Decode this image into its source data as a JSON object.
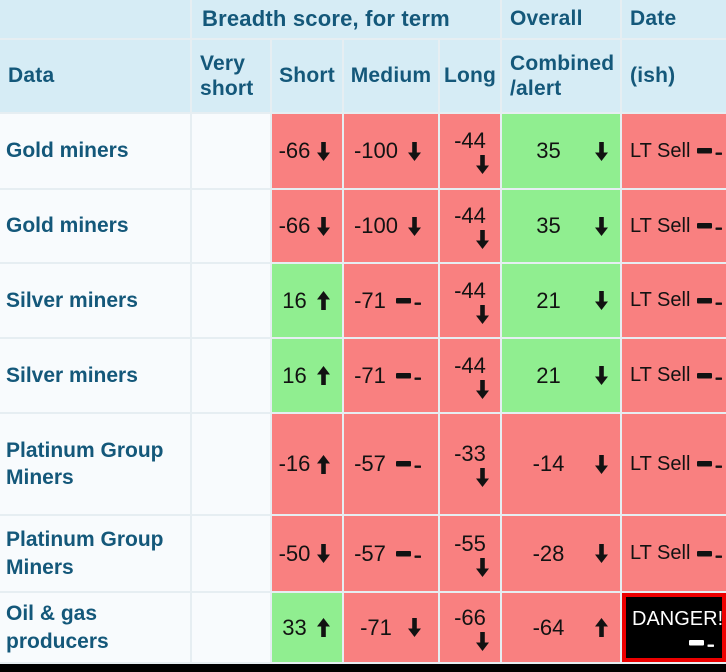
{
  "header": {
    "group_title": "Breadth score, for term",
    "overall_title": "Overall",
    "date_title": "Date",
    "col_data": "Data",
    "col_very_short": "Very short",
    "col_short": "Short",
    "col_medium": "Medium",
    "col_long": "Long",
    "col_combined": "Combined /alert",
    "col_date_ish": "(ish)"
  },
  "colors": {
    "header_bg": "#d6ecf5",
    "header_text": "#14587a",
    "negative_cell": "#f98080",
    "positive_cell": "#90ee90",
    "neutral_cell": "#f8fbfd",
    "danger_bg": "#000000",
    "danger_border": "#ec0000",
    "danger_text": "#ffffff"
  },
  "icons": {
    "up": "up-arrow-icon",
    "down": "down-arrow-icon",
    "flat": "flat-dash-icon"
  },
  "rows": [
    {
      "label": "Gold miners",
      "very_short": {
        "value": "",
        "trend": "none",
        "state": "none"
      },
      "short": {
        "value": "-66",
        "trend": "down",
        "state": "bad"
      },
      "medium": {
        "value": "-100",
        "trend": "down",
        "state": "bad"
      },
      "long": {
        "value": "-44",
        "trend": "down",
        "state": "bad"
      },
      "combined": {
        "value": "35",
        "trend": "down",
        "state": "good"
      },
      "date": {
        "value": "LT Sell",
        "trend": "flat",
        "state": "bad"
      }
    },
    {
      "label": "Gold miners",
      "very_short": {
        "value": "",
        "trend": "none",
        "state": "none"
      },
      "short": {
        "value": "-66",
        "trend": "down",
        "state": "bad"
      },
      "medium": {
        "value": "-100",
        "trend": "down",
        "state": "bad"
      },
      "long": {
        "value": "-44",
        "trend": "down",
        "state": "bad"
      },
      "combined": {
        "value": "35",
        "trend": "down",
        "state": "good"
      },
      "date": {
        "value": "LT Sell",
        "trend": "flat",
        "state": "bad"
      }
    },
    {
      "label": "Silver miners",
      "very_short": {
        "value": "",
        "trend": "none",
        "state": "none"
      },
      "short": {
        "value": "16",
        "trend": "up",
        "state": "good"
      },
      "medium": {
        "value": "-71",
        "trend": "flat",
        "state": "bad"
      },
      "long": {
        "value": "-44",
        "trend": "down",
        "state": "bad"
      },
      "combined": {
        "value": "21",
        "trend": "down",
        "state": "good"
      },
      "date": {
        "value": "LT Sell",
        "trend": "flat",
        "state": "bad"
      }
    },
    {
      "label": "Silver miners",
      "very_short": {
        "value": "",
        "trend": "none",
        "state": "none"
      },
      "short": {
        "value": "16",
        "trend": "up",
        "state": "good"
      },
      "medium": {
        "value": "-71",
        "trend": "flat",
        "state": "bad"
      },
      "long": {
        "value": "-44",
        "trend": "down",
        "state": "bad"
      },
      "combined": {
        "value": "21",
        "trend": "down",
        "state": "good"
      },
      "date": {
        "value": "LT Sell",
        "trend": "flat",
        "state": "bad"
      }
    },
    {
      "label": "Platinum Group Miners",
      "very_short": {
        "value": "",
        "trend": "none",
        "state": "none"
      },
      "short": {
        "value": "-16",
        "trend": "up",
        "state": "bad"
      },
      "medium": {
        "value": "-57",
        "trend": "flat",
        "state": "bad"
      },
      "long": {
        "value": "-33",
        "trend": "down",
        "state": "bad"
      },
      "combined": {
        "value": "-14",
        "trend": "down",
        "state": "bad"
      },
      "date": {
        "value": "LT Sell",
        "trend": "flat",
        "state": "bad"
      }
    },
    {
      "label": "Platinum Group Miners",
      "very_short": {
        "value": "",
        "trend": "none",
        "state": "none"
      },
      "short": {
        "value": "-50",
        "trend": "down",
        "state": "bad"
      },
      "medium": {
        "value": "-57",
        "trend": "flat",
        "state": "bad"
      },
      "long": {
        "value": "-55",
        "trend": "down",
        "state": "bad"
      },
      "combined": {
        "value": "-28",
        "trend": "down",
        "state": "bad"
      },
      "date": {
        "value": "LT Sell",
        "trend": "flat",
        "state": "bad"
      }
    },
    {
      "label": "Oil & gas producers",
      "very_short": {
        "value": "",
        "trend": "none",
        "state": "none"
      },
      "short": {
        "value": "33",
        "trend": "up",
        "state": "good"
      },
      "medium": {
        "value": "-71",
        "trend": "down",
        "state": "bad"
      },
      "long": {
        "value": "-66",
        "trend": "down",
        "state": "bad"
      },
      "combined": {
        "value": "-64",
        "trend": "up",
        "state": "bad"
      },
      "date": {
        "value": "DANGER!",
        "trend": "flat",
        "state": "danger"
      }
    }
  ]
}
